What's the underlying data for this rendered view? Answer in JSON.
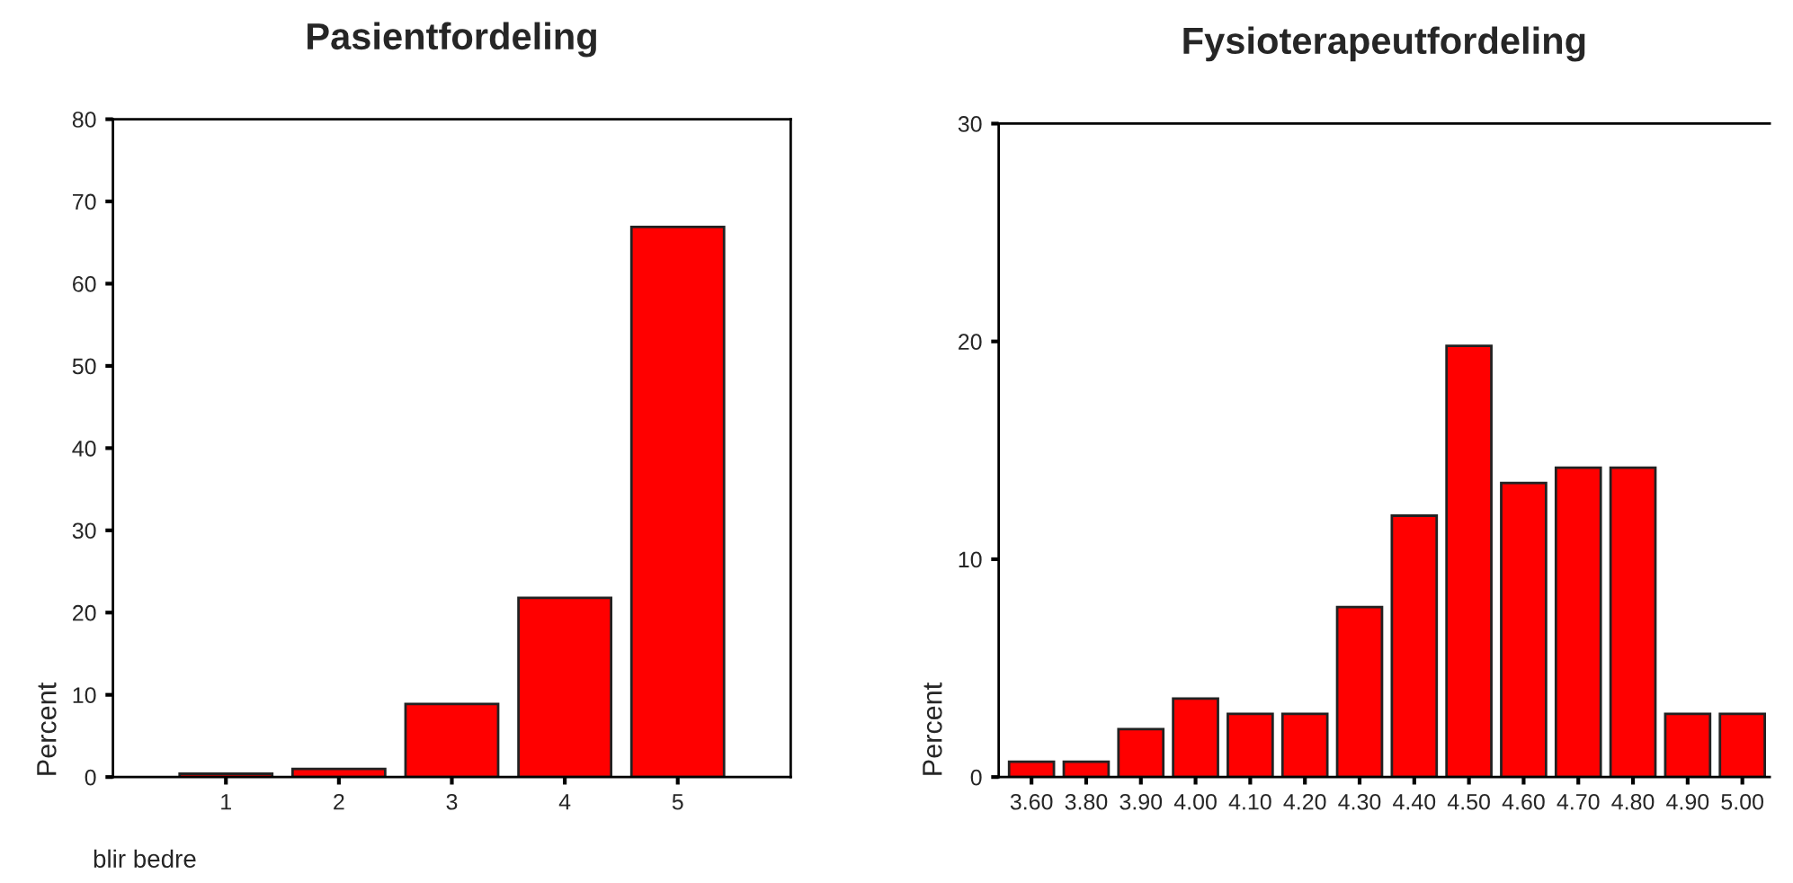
{
  "chart_data": [
    {
      "type": "bar",
      "title": "Pasientfordeling",
      "xlabel": "blir bedre",
      "ylabel": "Percent",
      "categories": [
        "1",
        "2",
        "3",
        "4",
        "5"
      ],
      "values": [
        0.4,
        1.0,
        8.9,
        21.8,
        66.9
      ],
      "color": "#ff0000",
      "ylim": [
        0,
        80
      ],
      "yticks": [
        0,
        10,
        20,
        30,
        40,
        50,
        60,
        70,
        80
      ],
      "grid": false
    },
    {
      "type": "bar",
      "title": "Fysioterapeutfordeling",
      "ylabel": "Percent",
      "categories": [
        "3.60",
        "3.80",
        "3.90",
        "4.00",
        "4.10",
        "4.20",
        "4.30",
        "4.40",
        "4.50",
        "4.60",
        "4.70",
        "4.80",
        "4.90",
        "5.00"
      ],
      "values": [
        0.7,
        0.7,
        2.2,
        3.6,
        2.9,
        2.9,
        7.8,
        12.0,
        19.8,
        13.5,
        14.2,
        14.2,
        2.9,
        2.9
      ],
      "color": "#ff0000",
      "ylim": [
        0,
        30
      ],
      "yticks": [
        0,
        10,
        20,
        30
      ],
      "grid": false
    }
  ]
}
